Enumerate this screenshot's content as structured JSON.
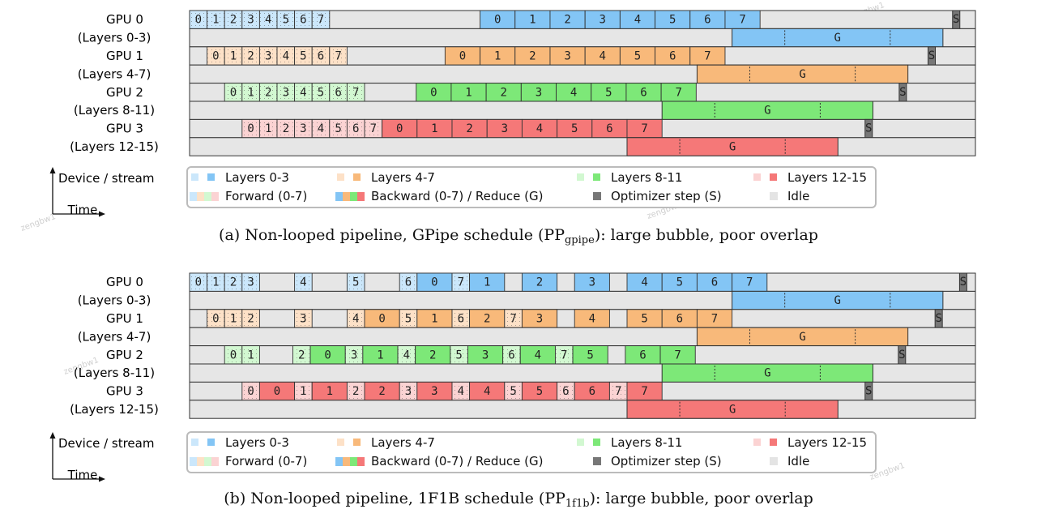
{
  "colors": {
    "idle": "#e6e6e6",
    "border": "#333333",
    "opt": "#777777",
    "gpus": [
      {
        "fwd": "#cbe7fb",
        "bwd": "#83c5f5"
      },
      {
        "fwd": "#fde1c7",
        "bwd": "#f8b97a"
      },
      {
        "fwd": "#d2f8d1",
        "bwd": "#7de878"
      },
      {
        "fwd": "#fbd3d3",
        "bwd": "#f57878"
      }
    ]
  },
  "watermark": "zengbw1",
  "panels": [
    {
      "id": "gpipe",
      "caption_main": "(a) Non-looped pipeline, GPipe schedule (PP",
      "caption_sub": "gpipe",
      "caption_tail": "): large bubble, poor overlap",
      "rows": [
        {
          "gpu": "GPU 0",
          "layers": "(Layers 0-3)",
          "compute": [
            {
              "k": "f",
              "t": "0"
            },
            {
              "k": "f",
              "t": "1"
            },
            {
              "k": "f",
              "t": "2"
            },
            {
              "k": "f",
              "t": "3"
            },
            {
              "k": "f",
              "t": "4"
            },
            {
              "k": "f",
              "t": "5"
            },
            {
              "k": "f",
              "t": "6"
            },
            {
              "k": "f",
              "t": "7"
            },
            {
              "k": "i",
              "d": 8.6
            },
            {
              "k": "b",
              "t": "0"
            },
            {
              "k": "b",
              "t": "1"
            },
            {
              "k": "b",
              "t": "2"
            },
            {
              "k": "b",
              "t": "3"
            },
            {
              "k": "b",
              "t": "4"
            },
            {
              "k": "b",
              "t": "5"
            },
            {
              "k": "b",
              "t": "6"
            },
            {
              "k": "b",
              "t": "7"
            },
            {
              "k": "i",
              "d": 11.0
            },
            {
              "k": "s",
              "t": "S"
            }
          ],
          "reduce_start": 31.0,
          "reduce_end": 43.05
        },
        {
          "gpu": "GPU 1",
          "layers": "(Layers 4-7)",
          "compute": [
            {
              "k": "i",
              "d": 1.0
            },
            {
              "k": "f",
              "t": "0"
            },
            {
              "k": "f",
              "t": "1"
            },
            {
              "k": "f",
              "t": "2"
            },
            {
              "k": "f",
              "t": "3"
            },
            {
              "k": "f",
              "t": "4"
            },
            {
              "k": "f",
              "t": "5"
            },
            {
              "k": "f",
              "t": "6"
            },
            {
              "k": "f",
              "t": "7"
            },
            {
              "k": "i",
              "d": 5.6
            },
            {
              "k": "b",
              "t": "0"
            },
            {
              "k": "b",
              "t": "1"
            },
            {
              "k": "b",
              "t": "2"
            },
            {
              "k": "b",
              "t": "3"
            },
            {
              "k": "b",
              "t": "4"
            },
            {
              "k": "b",
              "t": "5"
            },
            {
              "k": "b",
              "t": "6"
            },
            {
              "k": "b",
              "t": "7"
            },
            {
              "k": "i",
              "d": 11.6
            },
            {
              "k": "s",
              "t": "S"
            }
          ],
          "reduce_start": 29.0,
          "reduce_end": 41.05
        },
        {
          "gpu": "GPU 2",
          "layers": "(Layers 8-11)",
          "compute": [
            {
              "k": "i",
              "d": 2.0
            },
            {
              "k": "f",
              "t": "0"
            },
            {
              "k": "f",
              "t": "1"
            },
            {
              "k": "f",
              "t": "2"
            },
            {
              "k": "f",
              "t": "3"
            },
            {
              "k": "f",
              "t": "4"
            },
            {
              "k": "f",
              "t": "5"
            },
            {
              "k": "f",
              "t": "6"
            },
            {
              "k": "f",
              "t": "7"
            },
            {
              "k": "i",
              "d": 2.95
            },
            {
              "k": "b",
              "t": "0"
            },
            {
              "k": "b",
              "t": "1"
            },
            {
              "k": "b",
              "t": "2"
            },
            {
              "k": "b",
              "t": "3"
            },
            {
              "k": "b",
              "t": "4"
            },
            {
              "k": "b",
              "t": "5"
            },
            {
              "k": "b",
              "t": "6"
            },
            {
              "k": "b",
              "t": "7"
            },
            {
              "k": "i",
              "d": 11.6
            },
            {
              "k": "s",
              "t": "S"
            }
          ],
          "reduce_start": 27.0,
          "reduce_end": 39.05
        },
        {
          "gpu": "GPU 3",
          "layers": "(Layers 12-15)",
          "compute": [
            {
              "k": "i",
              "d": 3.0
            },
            {
              "k": "f",
              "t": "0"
            },
            {
              "k": "f",
              "t": "1"
            },
            {
              "k": "f",
              "t": "2"
            },
            {
              "k": "f",
              "t": "3"
            },
            {
              "k": "f",
              "t": "4"
            },
            {
              "k": "f",
              "t": "5"
            },
            {
              "k": "f",
              "t": "6"
            },
            {
              "k": "f",
              "t": "7"
            },
            {
              "k": "b",
              "t": "0"
            },
            {
              "k": "b",
              "t": "1"
            },
            {
              "k": "b",
              "t": "2"
            },
            {
              "k": "b",
              "t": "3"
            },
            {
              "k": "b",
              "t": "4"
            },
            {
              "k": "b",
              "t": "5"
            },
            {
              "k": "b",
              "t": "6"
            },
            {
              "k": "b",
              "t": "7"
            },
            {
              "k": "i",
              "d": 11.6
            },
            {
              "k": "s",
              "t": "S"
            }
          ],
          "reduce_start": 25.0,
          "reduce_end": 37.05
        }
      ]
    },
    {
      "id": "1f1b",
      "caption_main": "(b) Non-looped pipeline, 1F1B schedule (PP",
      "caption_sub": "1f1b",
      "caption_tail": "): large bubble, poor overlap",
      "rows": [
        {
          "gpu": "GPU 0",
          "layers": "(Layers 0-3)",
          "compute": [
            {
              "k": "f",
              "t": "0"
            },
            {
              "k": "f",
              "t": "1"
            },
            {
              "k": "f",
              "t": "2"
            },
            {
              "k": "f",
              "t": "3"
            },
            {
              "k": "i",
              "d": 2.0
            },
            {
              "k": "f",
              "t": "4"
            },
            {
              "k": "i",
              "d": 2.0
            },
            {
              "k": "f",
              "t": "5"
            },
            {
              "k": "i",
              "d": 2.0
            },
            {
              "k": "f",
              "t": "6"
            },
            {
              "k": "b",
              "t": "0"
            },
            {
              "k": "f",
              "t": "7"
            },
            {
              "k": "b",
              "t": "1"
            },
            {
              "k": "i",
              "d": 1.0
            },
            {
              "k": "b",
              "t": "2"
            },
            {
              "k": "i",
              "d": 1.0
            },
            {
              "k": "b",
              "t": "3"
            },
            {
              "k": "i",
              "d": 1.0
            },
            {
              "k": "b",
              "t": "4"
            },
            {
              "k": "b",
              "t": "5"
            },
            {
              "k": "b",
              "t": "6"
            },
            {
              "k": "b",
              "t": "7"
            },
            {
              "k": "i",
              "d": 11.0
            },
            {
              "k": "s",
              "t": "S"
            }
          ],
          "reduce_start": 31.0,
          "reduce_end": 43.05
        },
        {
          "gpu": "GPU 1",
          "layers": "(Layers 4-7)",
          "compute": [
            {
              "k": "i",
              "d": 1.0
            },
            {
              "k": "f",
              "t": "0"
            },
            {
              "k": "f",
              "t": "1"
            },
            {
              "k": "f",
              "t": "2"
            },
            {
              "k": "i",
              "d": 2.0
            },
            {
              "k": "f",
              "t": "3"
            },
            {
              "k": "i",
              "d": 2.0
            },
            {
              "k": "f",
              "t": "4"
            },
            {
              "k": "b",
              "t": "0"
            },
            {
              "k": "f",
              "t": "5"
            },
            {
              "k": "b",
              "t": "1"
            },
            {
              "k": "f",
              "t": "6"
            },
            {
              "k": "b",
              "t": "2"
            },
            {
              "k": "f",
              "t": "7"
            },
            {
              "k": "b",
              "t": "3"
            },
            {
              "k": "i",
              "d": 1.0
            },
            {
              "k": "b",
              "t": "4"
            },
            {
              "k": "i",
              "d": 1.0
            },
            {
              "k": "b",
              "t": "5"
            },
            {
              "k": "b",
              "t": "6"
            },
            {
              "k": "b",
              "t": "7"
            },
            {
              "k": "i",
              "d": 11.6
            },
            {
              "k": "s",
              "t": "S"
            }
          ],
          "reduce_start": 29.0,
          "reduce_end": 41.05
        },
        {
          "gpu": "GPU 2",
          "layers": "(Layers 8-11)",
          "compute": [
            {
              "k": "i",
              "d": 2.0
            },
            {
              "k": "f",
              "t": "0"
            },
            {
              "k": "f",
              "t": "1"
            },
            {
              "k": "i",
              "d": 1.9
            },
            {
              "k": "f",
              "t": "2"
            },
            {
              "k": "b",
              "t": "0"
            },
            {
              "k": "f",
              "t": "3"
            },
            {
              "k": "b",
              "t": "1"
            },
            {
              "k": "f",
              "t": "4"
            },
            {
              "k": "b",
              "t": "2"
            },
            {
              "k": "f",
              "t": "5"
            },
            {
              "k": "b",
              "t": "3"
            },
            {
              "k": "f",
              "t": "6"
            },
            {
              "k": "b",
              "t": "4"
            },
            {
              "k": "f",
              "t": "7"
            },
            {
              "k": "b",
              "t": "5"
            },
            {
              "k": "i",
              "d": 1.0
            },
            {
              "k": "b",
              "t": "6"
            },
            {
              "k": "b",
              "t": "7"
            },
            {
              "k": "i",
              "d": 11.6
            },
            {
              "k": "s",
              "t": "S"
            }
          ],
          "reduce_start": 27.0,
          "reduce_end": 39.05
        },
        {
          "gpu": "GPU 3",
          "layers": "(Layers 12-15)",
          "compute": [
            {
              "k": "i",
              "d": 3.0
            },
            {
              "k": "f",
              "t": "0"
            },
            {
              "k": "b",
              "t": "0"
            },
            {
              "k": "f",
              "t": "1"
            },
            {
              "k": "b",
              "t": "1"
            },
            {
              "k": "f",
              "t": "2"
            },
            {
              "k": "b",
              "t": "2"
            },
            {
              "k": "f",
              "t": "3"
            },
            {
              "k": "b",
              "t": "3"
            },
            {
              "k": "f",
              "t": "4"
            },
            {
              "k": "b",
              "t": "4"
            },
            {
              "k": "f",
              "t": "5"
            },
            {
              "k": "b",
              "t": "5"
            },
            {
              "k": "f",
              "t": "6"
            },
            {
              "k": "b",
              "t": "6"
            },
            {
              "k": "f",
              "t": "7"
            },
            {
              "k": "b",
              "t": "7"
            },
            {
              "k": "i",
              "d": 11.6
            },
            {
              "k": "s",
              "t": "S"
            }
          ],
          "reduce_start": 25.0,
          "reduce_end": 37.05
        }
      ]
    }
  ],
  "reduce_label": "G",
  "axis": {
    "device": "Device / stream",
    "time": "Time"
  },
  "legend": [
    {
      "label": "Layers 0-3",
      "swatch": "gpu0"
    },
    {
      "label": "Layers 4-7",
      "swatch": "gpu1"
    },
    {
      "label": "Layers 8-11",
      "swatch": "gpu2"
    },
    {
      "label": "Layers 12-15",
      "swatch": "gpu3"
    },
    {
      "label": "Forward (0-7)",
      "swatch": "fwd"
    },
    {
      "label": "Backward (0-7) / Reduce (G)",
      "swatch": "bwd"
    },
    {
      "label": "Optimizer step (S)",
      "swatch": "opt"
    },
    {
      "label": "Idle",
      "swatch": "idle"
    }
  ]
}
